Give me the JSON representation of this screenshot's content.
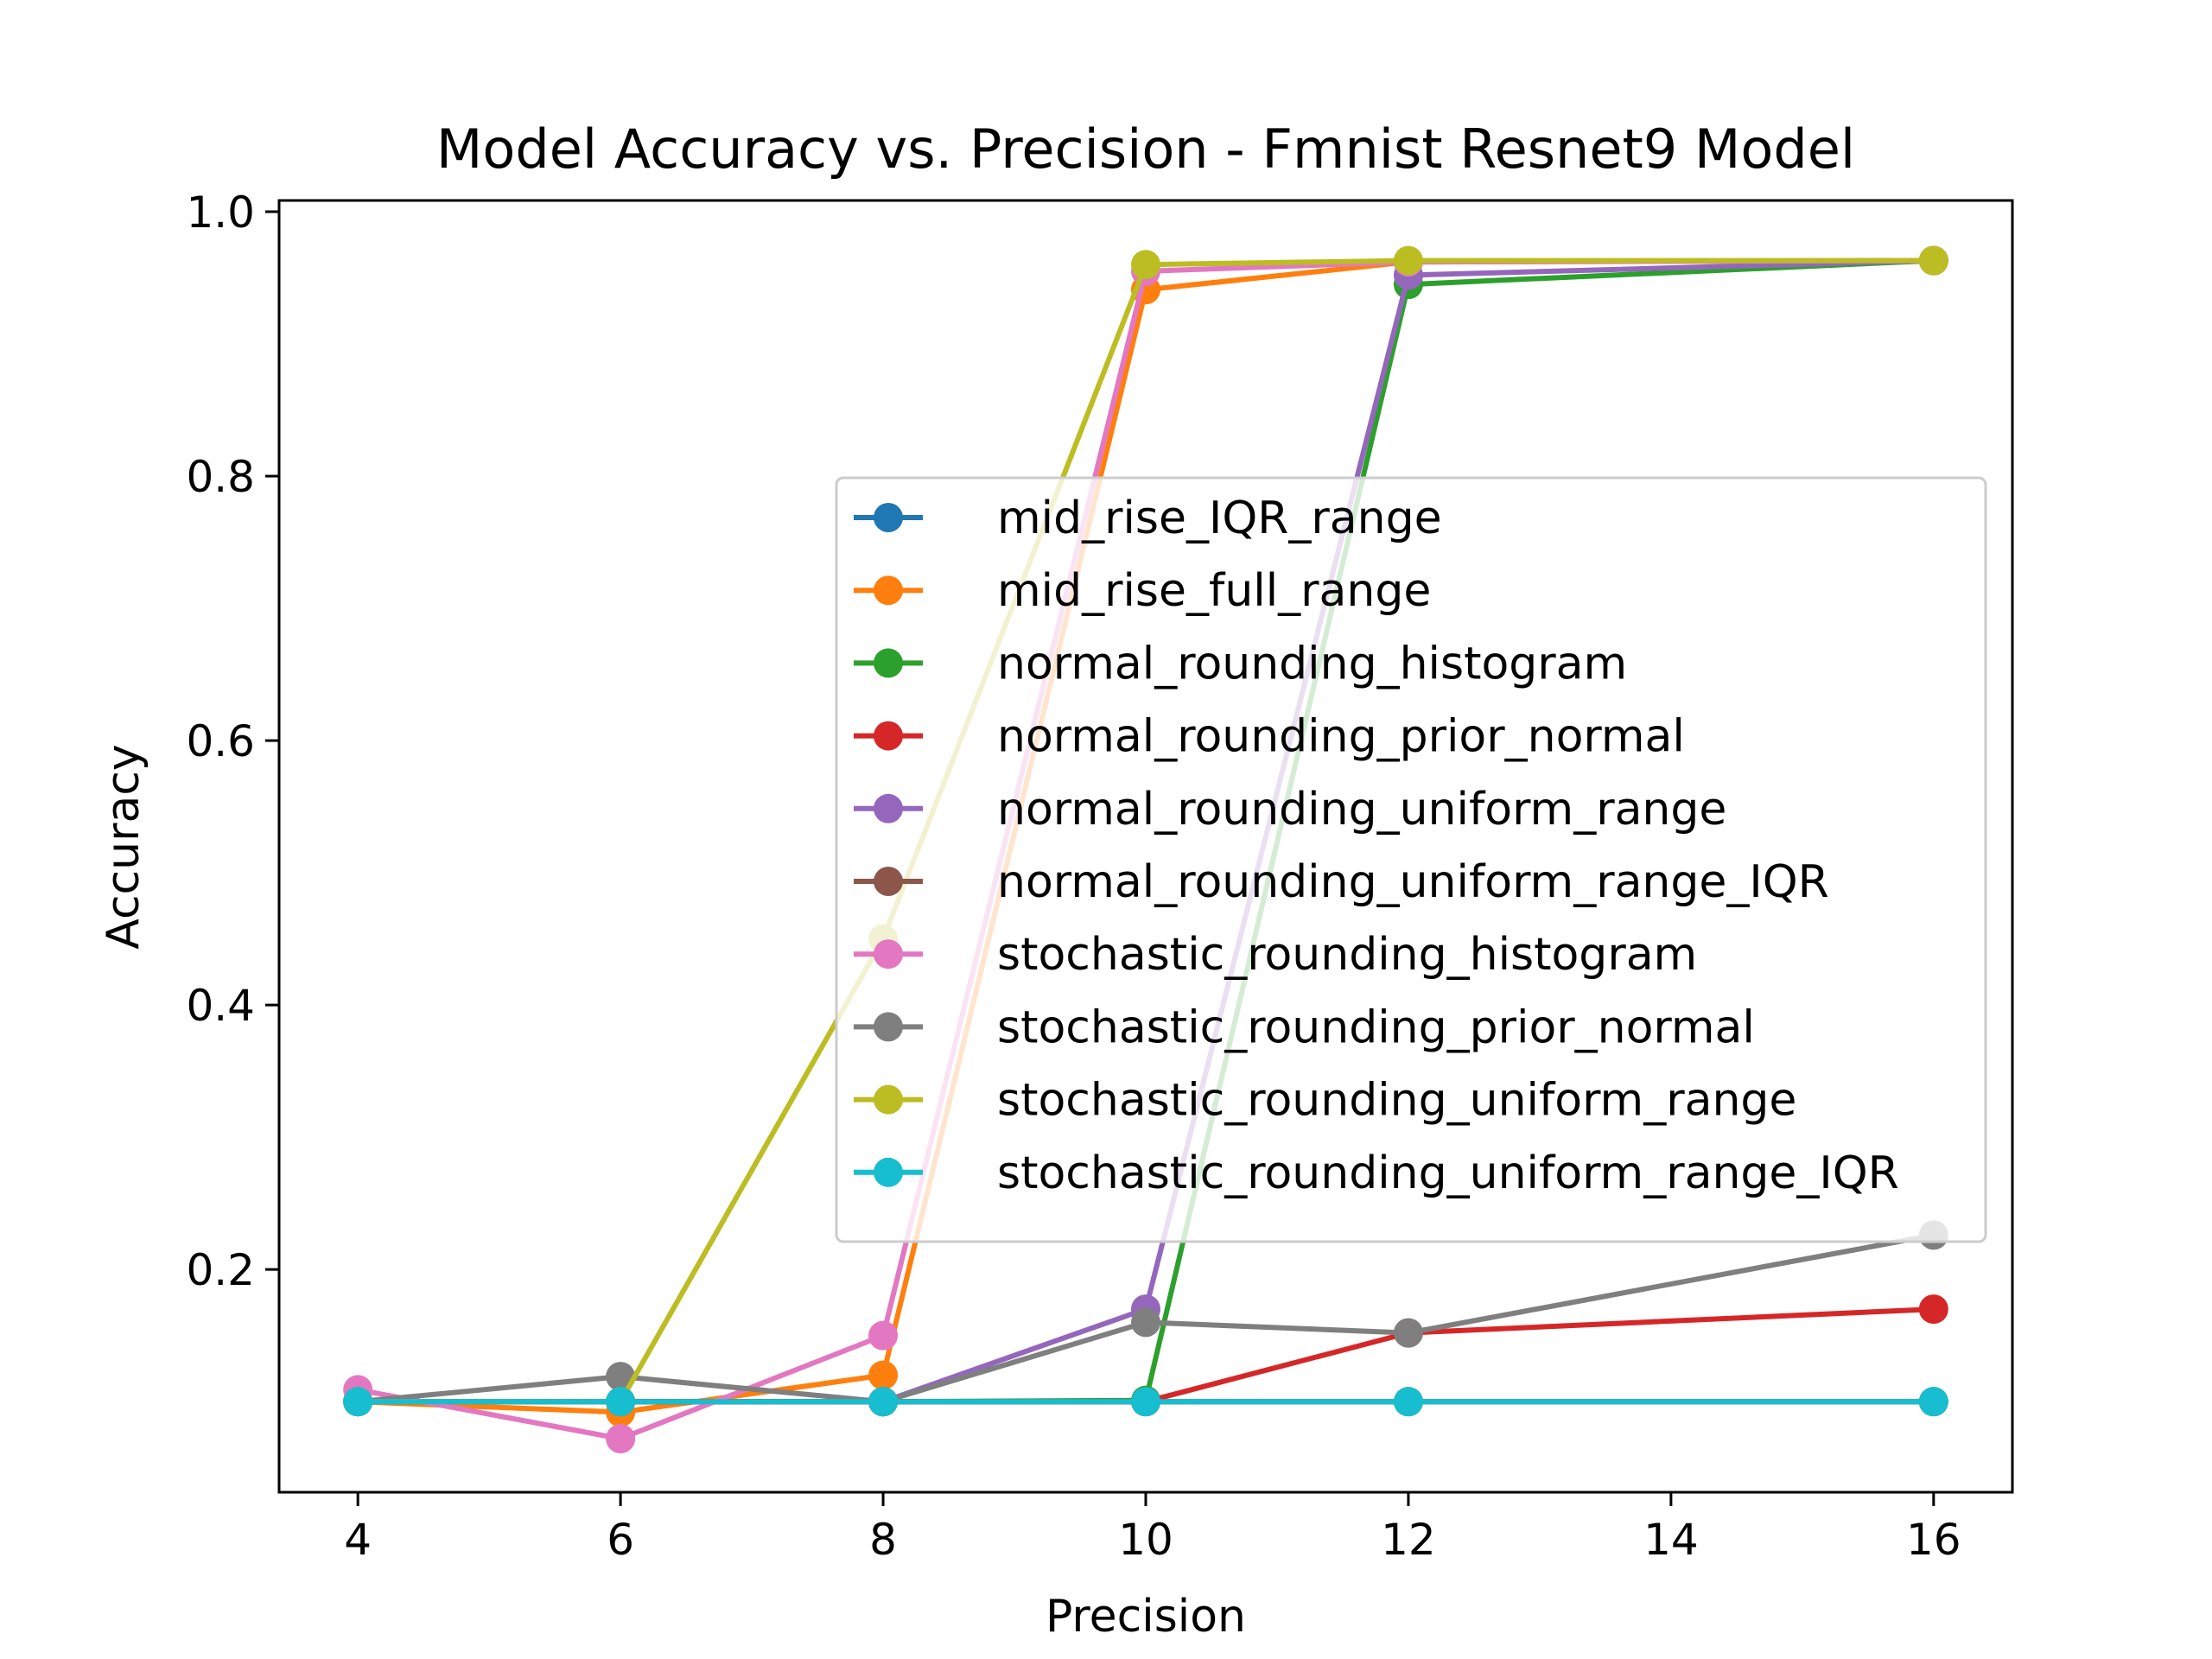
{
  "chart_data": {
    "type": "line",
    "title": "Model Accuracy vs. Precision - Fmnist Resnet9 Model",
    "xlabel": "Precision",
    "ylabel": "Accuracy",
    "x": [
      4,
      6,
      8,
      10,
      12,
      16
    ],
    "xlim": [
      3.4,
      16.6
    ],
    "ylim": [
      0.0315,
      1.0085
    ],
    "xticks": [
      4,
      6,
      8,
      10,
      12,
      14,
      16
    ],
    "xtick_labels": [
      "4",
      "6",
      "8",
      "10",
      "12",
      "14",
      "16"
    ],
    "yticks": [
      0.2,
      0.4,
      0.6,
      0.8,
      1.0
    ],
    "ytick_labels": [
      "0.2",
      "0.4",
      "0.6",
      "0.8",
      "1.0"
    ],
    "grid": false,
    "legend_position": "center-right",
    "series": [
      {
        "name": "mid_rise_IQR_range",
        "color": "#1f77b4",
        "values": [
          0.1,
          0.1,
          0.1,
          0.1,
          0.1,
          0.1
        ]
      },
      {
        "name": "mid_rise_full_range",
        "color": "#ff7f0e",
        "values": [
          0.1,
          0.092,
          0.12,
          0.941,
          0.962,
          0.963
        ]
      },
      {
        "name": "normal_rounding_histogram",
        "color": "#2ca02c",
        "values": [
          0.1,
          0.1,
          0.1,
          0.101,
          0.945,
          0.963
        ]
      },
      {
        "name": "normal_rounding_prior_normal",
        "color": "#d62728",
        "values": [
          0.1,
          0.1,
          0.1,
          0.1,
          0.152,
          0.17
        ]
      },
      {
        "name": "normal_rounding_uniform_range",
        "color": "#9467bd",
        "values": [
          0.1,
          0.1,
          0.1,
          0.17,
          0.952,
          0.963
        ]
      },
      {
        "name": "normal_rounding_uniform_range_IQR",
        "color": "#8c564b",
        "values": [
          0.1,
          0.1,
          0.1,
          0.1,
          0.1,
          0.1
        ]
      },
      {
        "name": "stochastic_rounding_histogram",
        "color": "#e377c2",
        "values": [
          0.109,
          0.072,
          0.15,
          0.955,
          0.962,
          0.963
        ]
      },
      {
        "name": "stochastic_rounding_prior_normal",
        "color": "#7f7f7f",
        "values": [
          0.1,
          0.119,
          0.1,
          0.16,
          0.152,
          0.226
        ]
      },
      {
        "name": "stochastic_rounding_uniform_range",
        "color": "#bcbd22",
        "values": [
          0.1,
          0.1,
          0.45,
          0.96,
          0.963,
          0.963
        ]
      },
      {
        "name": "stochastic_rounding_uniform_range_IQR",
        "color": "#17becf",
        "values": [
          0.1,
          0.1,
          0.1,
          0.1,
          0.1,
          0.1
        ]
      }
    ]
  }
}
